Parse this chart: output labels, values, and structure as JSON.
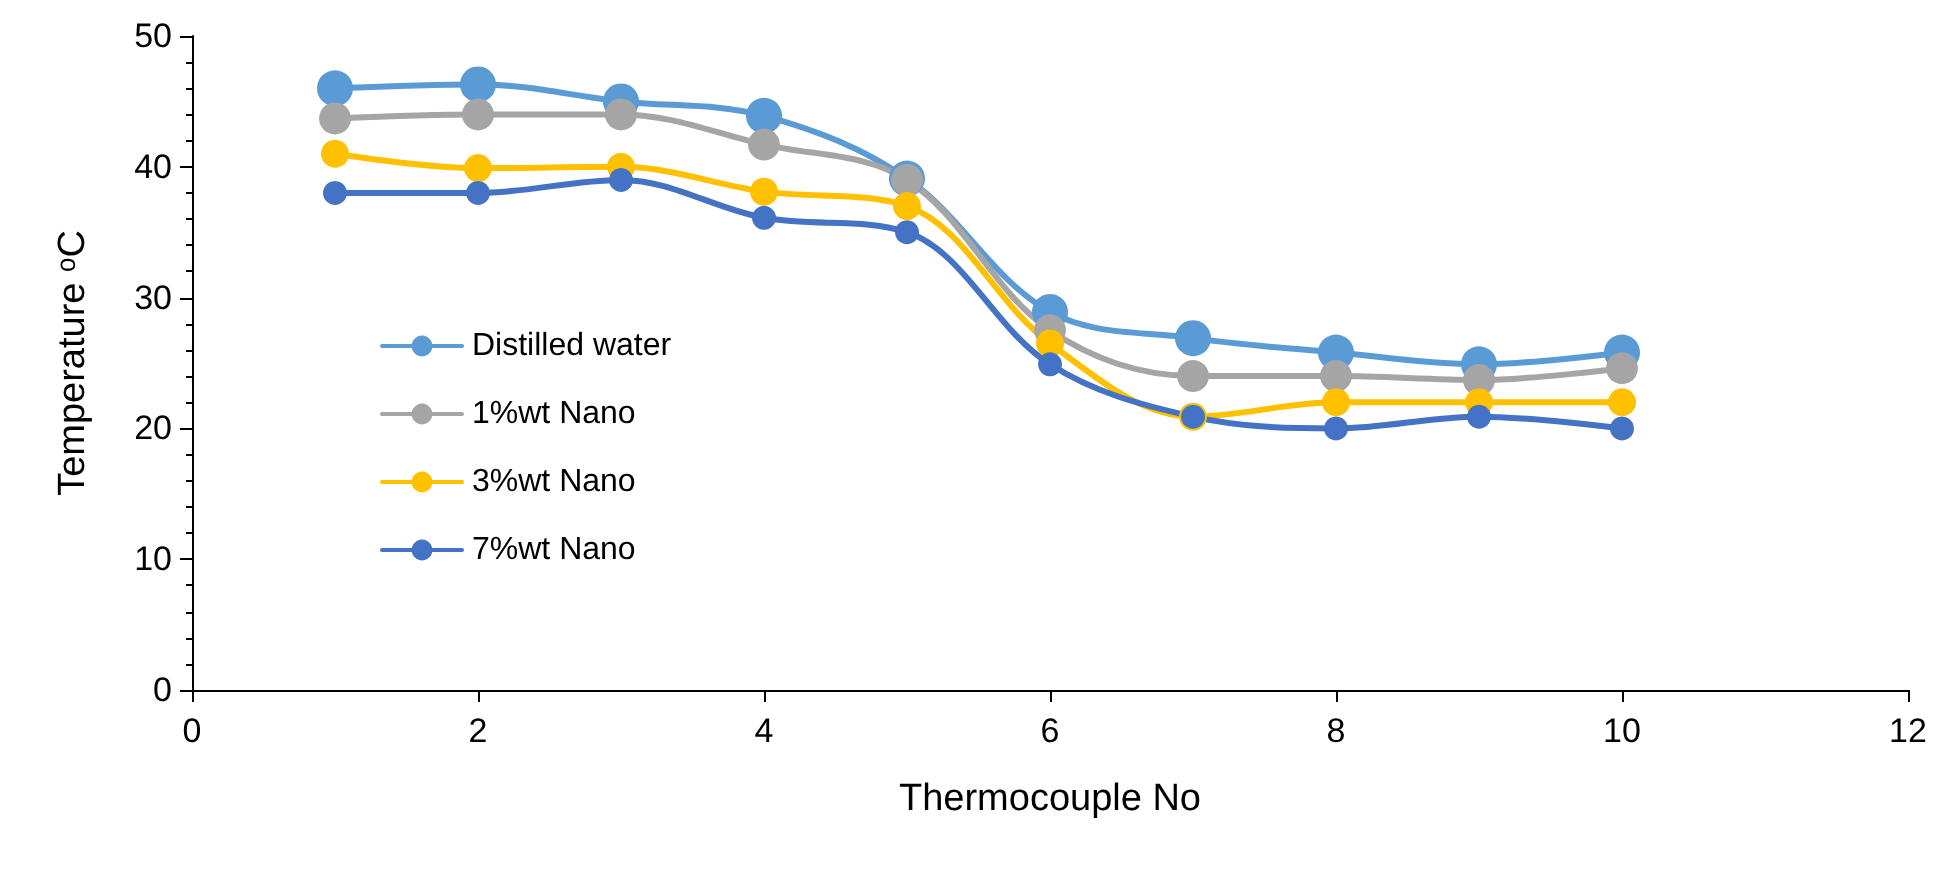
{
  "chart_data": {
    "type": "line",
    "xlabel": "Thermocouple No",
    "ylabel": "Temperature ᵒC",
    "x": [
      1,
      2,
      3,
      4,
      5,
      6,
      7,
      8,
      9,
      10
    ],
    "series": [
      {
        "name": "Distilled water",
        "color": "#5b9bd5",
        "values": [
          46,
          46.3,
          45,
          43.9,
          39.1,
          28.9,
          26.9,
          25.8,
          24.9,
          25.8
        ]
      },
      {
        "name": "1%wt Nano",
        "color": "#a5a5a5",
        "values": [
          43.7,
          44,
          44,
          41.7,
          39,
          27.5,
          24,
          24,
          23.7,
          24.6
        ]
      },
      {
        "name": "3%wt Nano",
        "color": "#ffc000",
        "values": [
          41,
          39.9,
          40,
          38.1,
          37,
          26.5,
          20.9,
          22,
          22,
          22
        ]
      },
      {
        "name": "7%wt Nano",
        "color": "#4472c4",
        "values": [
          38,
          38,
          39,
          36.1,
          35,
          24.9,
          20.9,
          20,
          20.9,
          20
        ]
      }
    ],
    "xlim": [
      0,
      12
    ],
    "xticks": [
      0,
      2,
      4,
      6,
      8,
      10,
      12
    ],
    "ylim": [
      0,
      50
    ],
    "yticks": [
      0,
      10,
      20,
      30,
      40,
      50
    ],
    "grid": false,
    "legend": "center left",
    "marker": "circle",
    "line_style": "solid"
  }
}
